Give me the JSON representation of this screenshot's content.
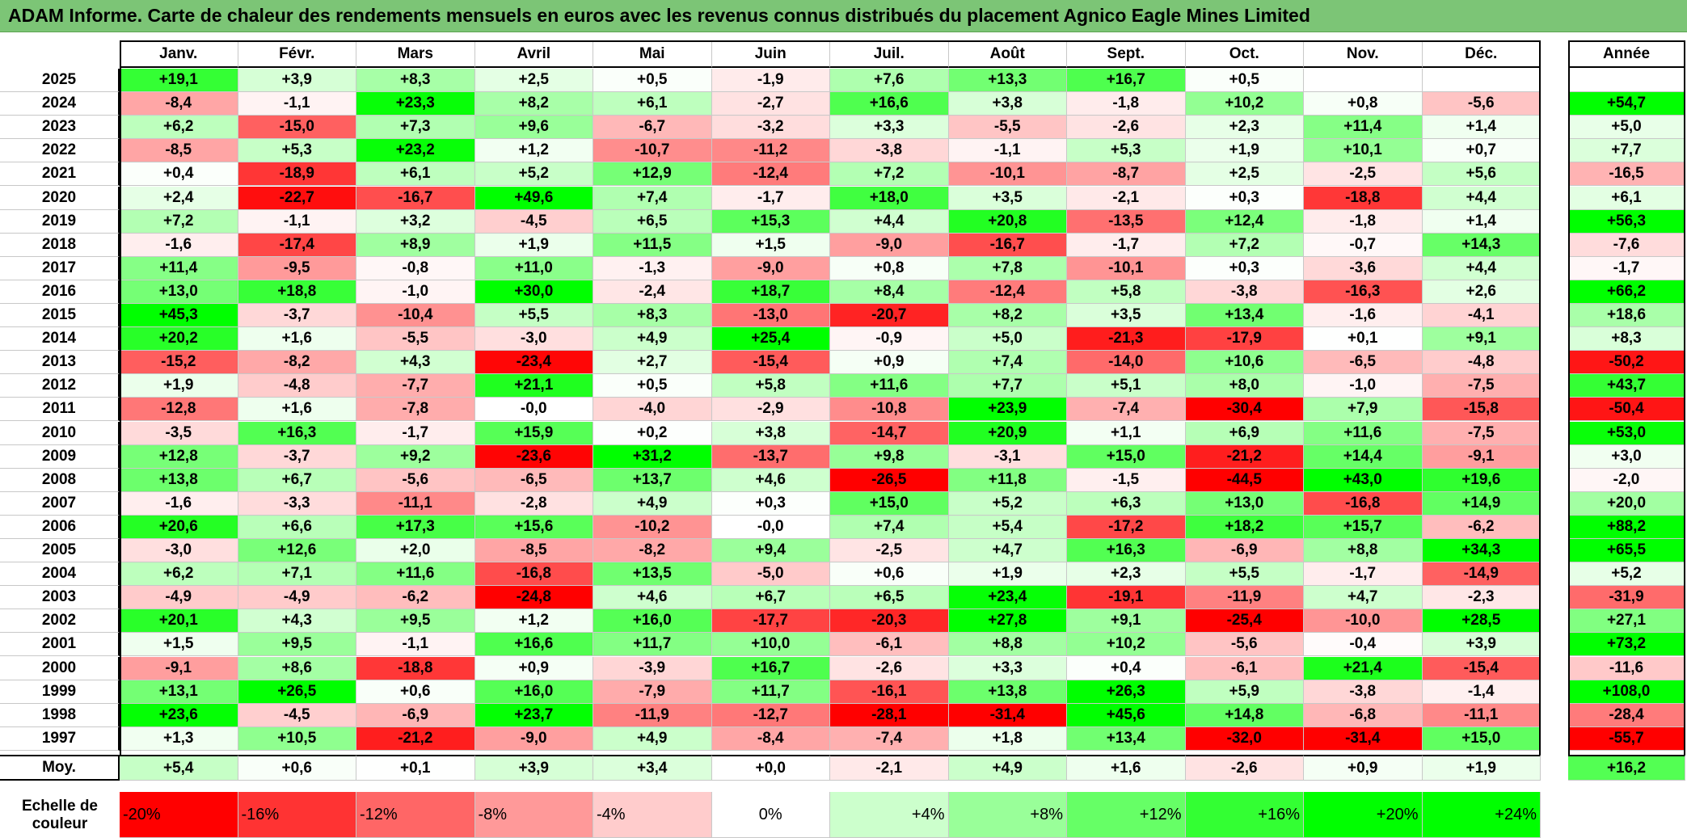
{
  "title": "ADAM Informe. Carte de chaleur des rendements mensuels en euros avec les revenus connus distribués du placement Agnico Eagle Mines Limited",
  "chart_data": {
    "type": "heatmap",
    "columns": [
      "Janv.",
      "Févr.",
      "Mars",
      "Avril",
      "Mai",
      "Juin",
      "Juil.",
      "Août",
      "Sept.",
      "Oct.",
      "Nov.",
      "Déc."
    ],
    "annual_header": "Année",
    "rows": [
      {
        "year": "2025",
        "values": [
          "+19,1",
          "+3,9",
          "+8,3",
          "+2,5",
          "+0,5",
          "-1,9",
          "+7,6",
          "+13,3",
          "+16,7",
          "+0,5",
          "",
          ""
        ],
        "annual": ""
      },
      {
        "year": "2024",
        "values": [
          "-8,4",
          "-1,1",
          "+23,3",
          "+8,2",
          "+6,1",
          "-2,7",
          "+16,6",
          "+3,8",
          "-1,8",
          "+10,2",
          "+0,8",
          "-5,6"
        ],
        "annual": "+54,7"
      },
      {
        "year": "2023",
        "values": [
          "+6,2",
          "-15,0",
          "+7,3",
          "+9,6",
          "-6,7",
          "-3,2",
          "+3,3",
          "-5,5",
          "-2,6",
          "+2,3",
          "+11,4",
          "+1,4"
        ],
        "annual": "+5,0"
      },
      {
        "year": "2022",
        "values": [
          "-8,5",
          "+5,3",
          "+23,2",
          "+1,2",
          "-10,7",
          "-11,2",
          "-3,8",
          "-1,1",
          "+5,3",
          "+1,9",
          "+10,1",
          "+0,7"
        ],
        "annual": "+7,7"
      },
      {
        "year": "2021",
        "values": [
          "+0,4",
          "-18,9",
          "+6,1",
          "+5,2",
          "+12,9",
          "-12,4",
          "+7,2",
          "-10,1",
          "-8,7",
          "+2,5",
          "-2,5",
          "+5,6"
        ],
        "annual": "-16,5"
      },
      {
        "year": "2020",
        "values": [
          "+2,4",
          "-22,7",
          "-16,7",
          "+49,6",
          "+7,4",
          "-1,7",
          "+18,0",
          "+3,5",
          "-2,1",
          "+0,3",
          "-18,8",
          "+4,4"
        ],
        "annual": "+6,1"
      },
      {
        "year": "2019",
        "values": [
          "+7,2",
          "-1,1",
          "+3,2",
          "-4,5",
          "+6,5",
          "+15,3",
          "+4,4",
          "+20,8",
          "-13,5",
          "+12,4",
          "-1,8",
          "+1,4"
        ],
        "annual": "+56,3"
      },
      {
        "year": "2018",
        "values": [
          "-1,6",
          "-17,4",
          "+8,9",
          "+1,9",
          "+11,5",
          "+1,5",
          "-9,0",
          "-16,7",
          "-1,7",
          "+7,2",
          "-0,7",
          "+14,3"
        ],
        "annual": "-7,6"
      },
      {
        "year": "2017",
        "values": [
          "+11,4",
          "-9,5",
          "-0,8",
          "+11,0",
          "-1,3",
          "-9,0",
          "+0,8",
          "+7,8",
          "-10,1",
          "+0,3",
          "-3,6",
          "+4,4"
        ],
        "annual": "-1,7"
      },
      {
        "year": "2016",
        "values": [
          "+13,0",
          "+18,8",
          "-1,0",
          "+30,0",
          "-2,4",
          "+18,7",
          "+8,4",
          "-12,4",
          "+5,8",
          "-3,8",
          "-16,3",
          "+2,6"
        ],
        "annual": "+66,2"
      },
      {
        "year": "2015",
        "values": [
          "+45,3",
          "-3,7",
          "-10,4",
          "+5,5",
          "+8,3",
          "-13,0",
          "-20,7",
          "+8,2",
          "+3,5",
          "+13,4",
          "-1,6",
          "-4,1"
        ],
        "annual": "+18,6"
      },
      {
        "year": "2014",
        "values": [
          "+20,2",
          "+1,6",
          "-5,5",
          "-3,0",
          "+4,9",
          "+25,4",
          "-0,9",
          "+5,0",
          "-21,3",
          "-17,9",
          "+0,1",
          "+9,1"
        ],
        "annual": "+8,3"
      },
      {
        "year": "2013",
        "values": [
          "-15,2",
          "-8,2",
          "+4,3",
          "-23,4",
          "+2,7",
          "-15,4",
          "+0,9",
          "+7,4",
          "-14,0",
          "+10,6",
          "-6,5",
          "-4,8"
        ],
        "annual": "-50,2"
      },
      {
        "year": "2012",
        "values": [
          "+1,9",
          "-4,8",
          "-7,7",
          "+21,1",
          "+0,5",
          "+5,8",
          "+11,6",
          "+7,7",
          "+5,1",
          "+8,0",
          "-1,0",
          "-7,5"
        ],
        "annual": "+43,7"
      },
      {
        "year": "2011",
        "values": [
          "-12,8",
          "+1,6",
          "-7,8",
          "-0,0",
          "-4,0",
          "-2,9",
          "-10,8",
          "+23,9",
          "-7,4",
          "-30,4",
          "+7,9",
          "-15,8"
        ],
        "annual": "-50,4"
      },
      {
        "year": "2010",
        "values": [
          "-3,5",
          "+16,3",
          "-1,7",
          "+15,9",
          "+0,2",
          "+3,8",
          "-14,7",
          "+20,9",
          "+1,1",
          "+6,9",
          "+11,6",
          "-7,5"
        ],
        "annual": "+53,0"
      },
      {
        "year": "2009",
        "values": [
          "+12,8",
          "-3,7",
          "+9,2",
          "-23,6",
          "+31,2",
          "-13,7",
          "+9,8",
          "-3,1",
          "+15,0",
          "-21,2",
          "+14,4",
          "-9,1"
        ],
        "annual": "+3,0"
      },
      {
        "year": "2008",
        "values": [
          "+13,8",
          "+6,7",
          "-5,6",
          "-6,5",
          "+13,7",
          "+4,6",
          "-26,5",
          "+11,8",
          "-1,5",
          "-44,5",
          "+43,0",
          "+19,6"
        ],
        "annual": "-2,0"
      },
      {
        "year": "2007",
        "values": [
          "-1,6",
          "-3,3",
          "-11,1",
          "-2,8",
          "+4,9",
          "+0,3",
          "+15,0",
          "+5,2",
          "+6,3",
          "+13,0",
          "-16,8",
          "+14,9"
        ],
        "annual": "+20,0"
      },
      {
        "year": "2006",
        "values": [
          "+20,6",
          "+6,6",
          "+17,3",
          "+15,6",
          "-10,2",
          "-0,0",
          "+7,4",
          "+5,4",
          "-17,2",
          "+18,2",
          "+15,7",
          "-6,2"
        ],
        "annual": "+88,2"
      },
      {
        "year": "2005",
        "values": [
          "-3,0",
          "+12,6",
          "+2,0",
          "-8,5",
          "-8,2",
          "+9,4",
          "-2,5",
          "+4,7",
          "+16,3",
          "-6,9",
          "+8,8",
          "+34,3"
        ],
        "annual": "+65,5"
      },
      {
        "year": "2004",
        "values": [
          "+6,2",
          "+7,1",
          "+11,6",
          "-16,8",
          "+13,5",
          "-5,0",
          "+0,6",
          "+1,9",
          "+2,3",
          "+5,5",
          "-1,7",
          "-14,9"
        ],
        "annual": "+5,2"
      },
      {
        "year": "2003",
        "values": [
          "-4,9",
          "-4,9",
          "-6,2",
          "-24,8",
          "+4,6",
          "+6,7",
          "+6,5",
          "+23,4",
          "-19,1",
          "-11,9",
          "+4,7",
          "-2,3"
        ],
        "annual": "-31,9"
      },
      {
        "year": "2002",
        "values": [
          "+20,1",
          "+4,3",
          "+9,5",
          "+1,2",
          "+16,0",
          "-17,7",
          "-20,3",
          "+27,8",
          "+9,1",
          "-25,4",
          "-10,0",
          "+28,5"
        ],
        "annual": "+27,1"
      },
      {
        "year": "2001",
        "values": [
          "+1,5",
          "+9,5",
          "-1,1",
          "+16,6",
          "+11,7",
          "+10,0",
          "-6,1",
          "+8,8",
          "+10,2",
          "-5,6",
          "-0,4",
          "+3,9"
        ],
        "annual": "+73,2"
      },
      {
        "year": "2000",
        "values": [
          "-9,1",
          "+8,6",
          "-18,8",
          "+0,9",
          "-3,9",
          "+16,7",
          "-2,6",
          "+3,3",
          "+0,4",
          "-6,1",
          "+21,4",
          "-15,4"
        ],
        "annual": "-11,6"
      },
      {
        "year": "1999",
        "values": [
          "+13,1",
          "+26,5",
          "+0,6",
          "+16,0",
          "-7,9",
          "+11,7",
          "-16,1",
          "+13,8",
          "+26,3",
          "+5,9",
          "-3,8",
          "-1,4"
        ],
        "annual": "+108,0"
      },
      {
        "year": "1998",
        "values": [
          "+23,6",
          "-4,5",
          "-6,9",
          "+23,7",
          "-11,9",
          "-12,7",
          "-28,1",
          "-31,4",
          "+45,6",
          "+14,8",
          "-6,8",
          "-11,1"
        ],
        "annual": "-28,4"
      },
      {
        "year": "1997",
        "values": [
          "+1,3",
          "+10,5",
          "-21,2",
          "-9,0",
          "+4,9",
          "-8,4",
          "-7,4",
          "+1,8",
          "+13,4",
          "-32,0",
          "-31,4",
          "+15,0"
        ],
        "annual": "-55,7"
      }
    ],
    "average": {
      "label": "Moy.",
      "values": [
        "+5,4",
        "+0,6",
        "+0,1",
        "+3,9",
        "+3,4",
        "+0,0",
        "-2,1",
        "+4,9",
        "+1,6",
        "-2,6",
        "+0,9",
        "+1,9"
      ],
      "annual": "+16,2"
    },
    "color_scale": {
      "label_line1": "Echelle de",
      "label_line2": "couleur",
      "stops": [
        "-20%",
        "-16%",
        "-12%",
        "-8%",
        "-4%",
        "0%",
        "+4%",
        "+8%",
        "+12%",
        "+16%",
        "+20%",
        "+24%"
      ],
      "stop_values": [
        -20,
        -16,
        -12,
        -8,
        -4,
        0,
        4,
        8,
        12,
        16,
        20,
        24
      ],
      "negative_color": "#ff0000",
      "positive_color": "#00ff00",
      "neutral_color": "#ffffff"
    }
  }
}
